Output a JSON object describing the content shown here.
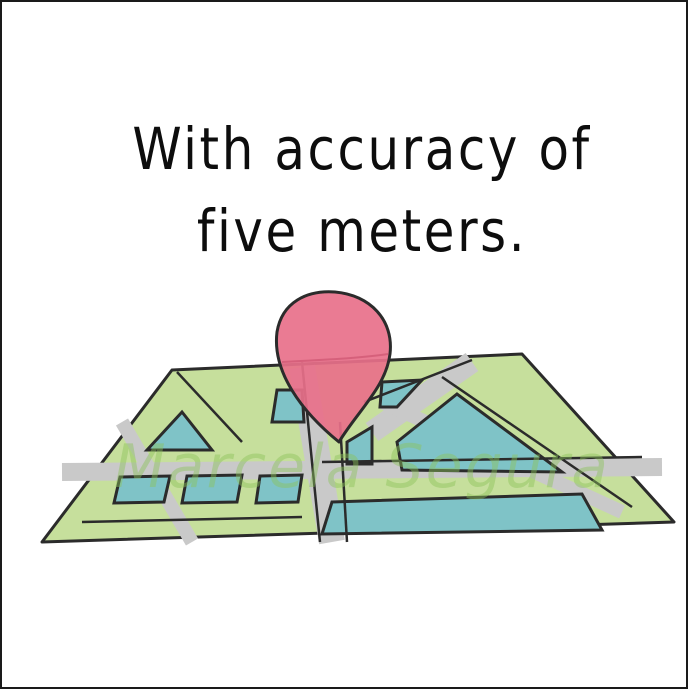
{
  "caption": {
    "line1": "With accuracy of",
    "line2": "five meters."
  },
  "illustration": {
    "subject": "map-with-location-pin",
    "pin_icon": "map-pin-icon",
    "colors": {
      "pin": "#e8708a",
      "water": "#7fc3c7",
      "park": "#c6df9c",
      "road": "#c9c9c9",
      "outline": "#2b2b2b"
    }
  },
  "watermark": {
    "text": "Marcela Segura",
    "color": "#8bc45c"
  }
}
